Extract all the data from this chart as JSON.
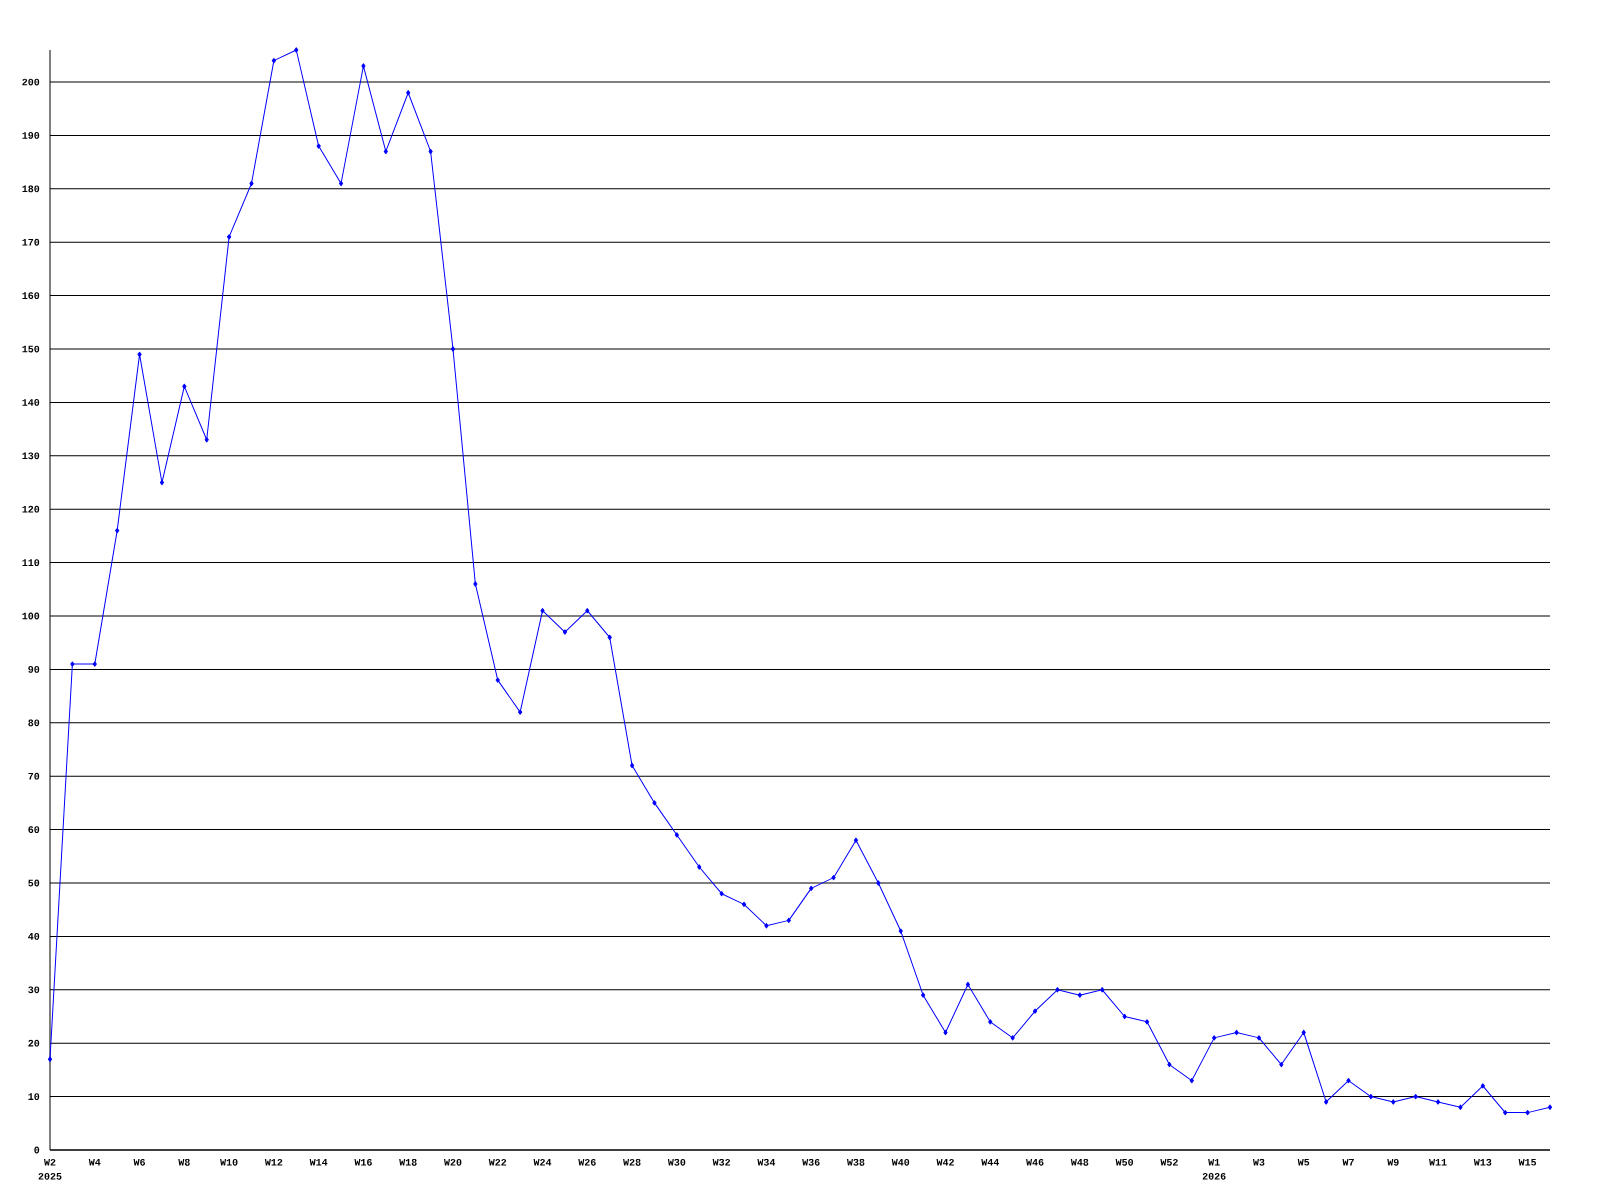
{
  "chart_data": {
    "type": "line",
    "categories": [
      "W2",
      null,
      "W4",
      null,
      "W6",
      null,
      "W8",
      null,
      "W10",
      null,
      "W12",
      null,
      "W14",
      null,
      "W16",
      null,
      "W18",
      null,
      "W20",
      null,
      "W22",
      null,
      "W24",
      null,
      "W26",
      null,
      "W28",
      null,
      "W30",
      null,
      "W32",
      null,
      "W34",
      null,
      "W36",
      null,
      "W38",
      null,
      "W40",
      null,
      "W42",
      null,
      "W44",
      null,
      "W46",
      null,
      "W48",
      null,
      "W50",
      null,
      "W52",
      null,
      "W1",
      null,
      "W3",
      null,
      "W5",
      null,
      "W7",
      null,
      "W9",
      null,
      "W11",
      null,
      "W13",
      null,
      "W15",
      null
    ],
    "values": [
      17,
      91,
      91,
      116,
      149,
      125,
      143,
      133,
      171,
      181,
      204,
      206,
      188,
      181,
      203,
      187,
      198,
      187,
      150,
      106,
      88,
      82,
      101,
      97,
      101,
      96,
      72,
      65,
      59,
      53,
      48,
      46,
      42,
      43,
      49,
      51,
      58,
      50,
      41,
      29,
      22,
      31,
      24,
      21,
      26,
      30,
      29,
      30,
      25,
      24,
      16,
      13,
      21,
      22,
      21,
      16,
      22,
      9,
      13,
      10,
      9,
      10,
      9,
      8,
      12,
      7,
      7,
      8
    ],
    "color": "#0000ff",
    "marker": "diamond",
    "line_style": "solid",
    "grid": "y",
    "ylim": [
      0,
      206
    ],
    "yticks": [
      0,
      10,
      20,
      30,
      40,
      50,
      60,
      70,
      80,
      90,
      100,
      110,
      120,
      130,
      140,
      150,
      160,
      170,
      180,
      190,
      200
    ],
    "annotations": [
      "2025",
      "2026"
    ]
  }
}
